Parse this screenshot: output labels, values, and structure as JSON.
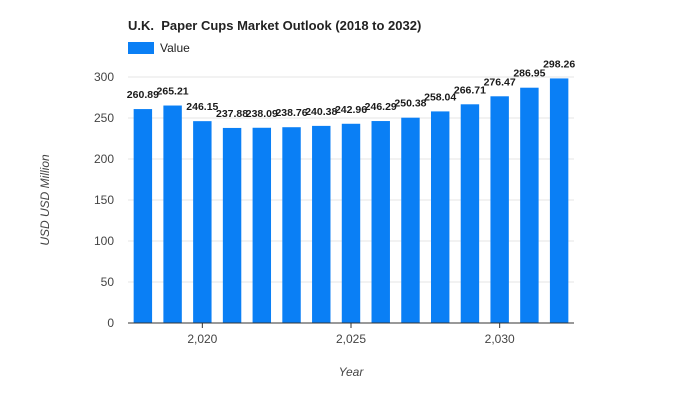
{
  "colors": {
    "bar": "#0a7ff5",
    "grid": "#e6e6e6",
    "axis": "#333333",
    "text": "#444444",
    "label": "#1a1a1a"
  },
  "chart_data": {
    "type": "bar",
    "title": "U.K.  Paper Cups Market Outlook (2018 to 2032)",
    "xlabel": "Year",
    "ylabel": "USD USD Million",
    "ylim": [
      0,
      300
    ],
    "yticks": [
      "0",
      "50",
      "100",
      "150",
      "200",
      "250",
      "300"
    ],
    "xticks": [
      {
        "year": 2020,
        "label": "2,020"
      },
      {
        "year": 2025,
        "label": "2,025"
      },
      {
        "year": 2030,
        "label": "2,030"
      }
    ],
    "legend": {
      "position": "top-left"
    },
    "grid": true,
    "categories": [
      2018,
      2019,
      2020,
      2021,
      2022,
      2023,
      2024,
      2025,
      2026,
      2027,
      2028,
      2029,
      2030,
      2031,
      2032
    ],
    "series": [
      {
        "name": "Value",
        "values": [
          260.89,
          265.21,
          246.15,
          237.88,
          238.09,
          238.76,
          240.38,
          242.96,
          246.29,
          250.38,
          258.04,
          266.71,
          276.47,
          286.95,
          298.26
        ],
        "data_labels": [
          "260.89",
          "265.21",
          "246.15",
          "237.88",
          "238.09",
          "238.76",
          "240.38",
          "242.96",
          "246.29",
          "250.38",
          "258.04",
          "266.71",
          "276.47",
          "286.95",
          "298.26"
        ]
      }
    ]
  }
}
